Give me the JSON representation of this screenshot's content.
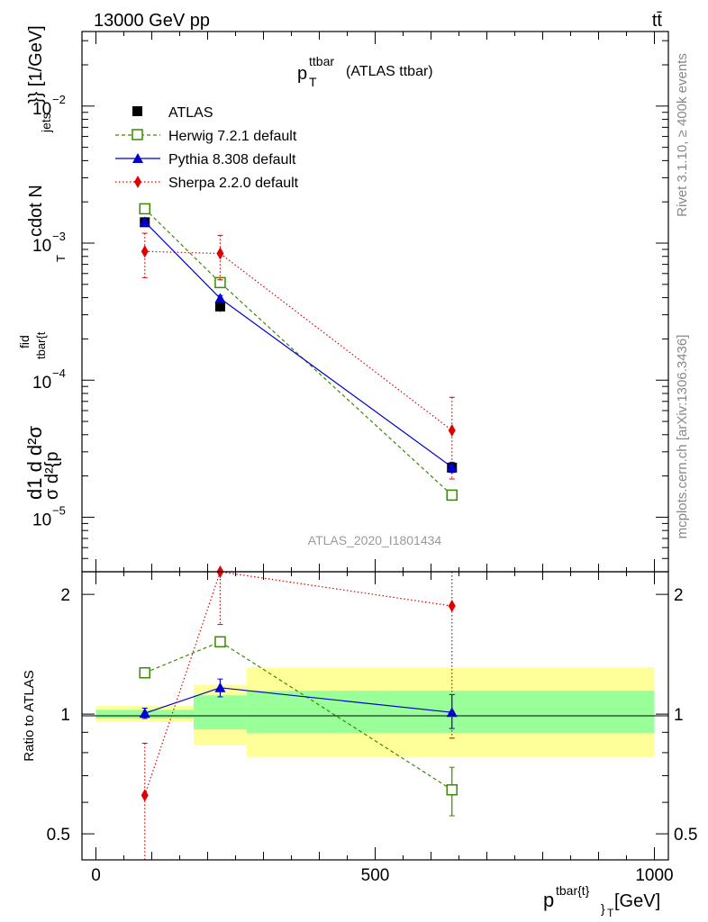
{
  "header": {
    "left": "13000 GeV pp",
    "right": "tt̄"
  },
  "side_labels": {
    "rivet": "Rivet 3.1.10, ≥ 400k events",
    "mcplots": "mcplots.cern.ch [arXiv:1306.3436]"
  },
  "colors": {
    "atlas": "#000000",
    "herwig": "#3a8a00",
    "pythia": "#0000cc",
    "sherpa": "#e00000",
    "band_inner": "#99ff99",
    "band_outer": "#ffff99"
  },
  "chart_data": [
    {
      "type": "line",
      "panel": "main",
      "title": "p_T^{ttbar} (ATLAS ttbar)",
      "title_parts": {
        "main": "p",
        "sup": "ttbar",
        "sub": "T",
        "rest": "(ATLAS ttbar)"
      },
      "watermark": "ATLAS_2020_I1801434",
      "ylabel": "d1/σ d²σ^{fid} / d²{p_T^{tbar{t}}} cdot N_{jets}}} [1/GeV]",
      "ylabel_parts": {
        "lead": "d1 d d²σ",
        "sup": "fid",
        "denom": "σ d²{p",
        "sup2": "tbar{t",
        "sub": "T",
        "tail": "cdot N",
        "sub2": "jets",
        "end": "}} [1/GeV]"
      },
      "yscale": "log",
      "ylim": [
        4e-06,
        0.035
      ],
      "y_ticks": [
        {
          "value": 1e-05,
          "base": "10",
          "exp": "−5"
        },
        {
          "value": 0.0001,
          "base": "10",
          "exp": "−4"
        },
        {
          "value": 0.001,
          "base": "10",
          "exp": "−3"
        },
        {
          "value": 0.01,
          "base": "10",
          "exp": "−2"
        }
      ],
      "xlim": [
        -25,
        1025
      ],
      "series": [
        {
          "name": "ATLAS",
          "key": "atlas",
          "marker": "square-filled",
          "line": "none",
          "x": [
            87.5,
            222.5,
            637.5
          ],
          "y": [
            0.00142,
            0.000345,
            2.3e-05
          ],
          "yerr_lo": [
            8e-05,
            3e-05,
            2e-06
          ],
          "yerr_hi": [
            8e-05,
            3e-05,
            2e-06
          ]
        },
        {
          "name": "Herwig 7.2.1 default",
          "key": "herwig",
          "marker": "square-open",
          "line": "dashed",
          "x": [
            87.5,
            222.5,
            637.5
          ],
          "y": [
            0.00178,
            0.000515,
            1.45e-05
          ],
          "yerr_lo": [
            6e-05,
            3e-05,
            1.2e-06
          ],
          "yerr_hi": [
            6e-05,
            3e-05,
            1.2e-06
          ]
        },
        {
          "name": "Pythia 8.308 default",
          "key": "pythia",
          "marker": "triangle-filled",
          "line": "solid",
          "x": [
            87.5,
            222.5,
            637.5
          ],
          "y": [
            0.00143,
            0.000395,
            2.32e-05
          ],
          "yerr_lo": [
            5e-05,
            2e-05,
            2e-06
          ],
          "yerr_hi": [
            5e-05,
            2e-05,
            2e-06
          ]
        },
        {
          "name": "Sherpa 2.2.0 default",
          "key": "sherpa",
          "marker": "diamond-filled",
          "line": "dotted",
          "x": [
            87.5,
            222.5,
            637.5
          ],
          "y": [
            0.00087,
            0.00084,
            4.3e-05
          ],
          "yerr_lo": [
            0.00031,
            0.0003,
            2.4e-05
          ],
          "yerr_hi": [
            0.00031,
            0.0003,
            3.2e-05
          ]
        }
      ]
    },
    {
      "type": "line",
      "panel": "ratio",
      "ylabel": "Ratio to ATLAS",
      "yscale": "log",
      "ylim": [
        0.43,
        2.28
      ],
      "y_ticks": [
        {
          "value": 0.5,
          "label": "0.5"
        },
        {
          "value": 1,
          "label": "1"
        },
        {
          "value": 2,
          "label": "2"
        }
      ],
      "xlim": [
        -25,
        1025
      ],
      "x_ticks": [
        {
          "value": 0,
          "label": "0"
        },
        {
          "value": 500,
          "label": "500"
        },
        {
          "value": 1000,
          "label": "1000"
        }
      ],
      "xlabel": "p_T^{tbar{t}} [GeV]",
      "xlabel_parts": {
        "main": "p",
        "sup": "tbar{t}",
        "sub": "}",
        "sub2": "T",
        "rest": "[GeV]"
      },
      "bands": [
        {
          "x0": 0,
          "x1": 175,
          "inner": [
            0.975,
            1.025
          ],
          "outer": [
            0.955,
            1.048
          ]
        },
        {
          "x0": 175,
          "x1": 270,
          "inner": [
            0.915,
            1.115
          ],
          "outer": [
            0.835,
            1.185
          ]
        },
        {
          "x0": 270,
          "x1": 1000,
          "inner": [
            0.895,
            1.145
          ],
          "outer": [
            0.78,
            1.31
          ]
        }
      ],
      "series": [
        {
          "name": "Herwig 7.2.1 default",
          "key": "herwig",
          "marker": "square-open",
          "line": "dashed",
          "x": [
            87.5,
            222.5,
            637.5
          ],
          "y": [
            1.27,
            1.52,
            0.645
          ],
          "yerr_lo": [
            0.02,
            0.04,
            0.09
          ],
          "yerr_hi": [
            0.02,
            0.04,
            0.09
          ]
        },
        {
          "name": "Pythia 8.308 default",
          "key": "pythia",
          "marker": "triangle-filled",
          "line": "solid",
          "x": [
            87.5,
            222.5,
            637.5
          ],
          "y": [
            1.005,
            1.165,
            1.01
          ],
          "yerr_lo": [
            0.03,
            0.06,
            0.09
          ],
          "yerr_hi": [
            0.03,
            0.06,
            0.11
          ]
        },
        {
          "name": "Sherpa 2.2.0 default",
          "key": "sherpa",
          "marker": "diamond-filled",
          "line": "dotted",
          "x": [
            87.5,
            222.5,
            637.5
          ],
          "y": [
            0.625,
            2.28,
            1.87
          ],
          "yerr_lo": [
            0.22,
            0.6,
            1.0
          ],
          "yerr_hi": [
            0.22,
            0.6,
            0.9
          ]
        }
      ]
    }
  ]
}
